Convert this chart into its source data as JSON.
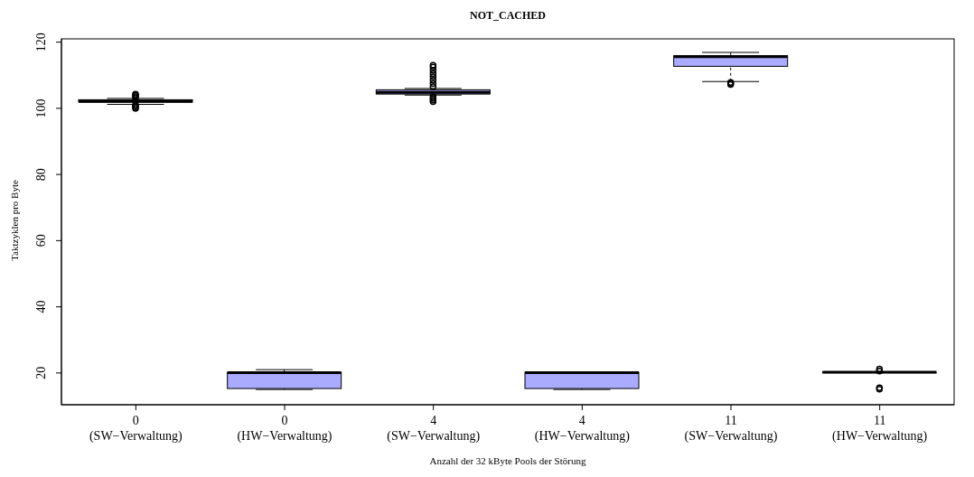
{
  "chart_data": {
    "type": "box",
    "title": "NOT_CACHED",
    "xlabel": "Anzahl der 32 kByte Pools der Störung",
    "ylabel": "Taktzyklen pro Byte",
    "categories": [
      "0\n(SW−Verwaltung)",
      "0\n(HW−Verwaltung)",
      "4\n(SW−Verwaltung)",
      "4\n(HW−Verwaltung)",
      "11\n(SW−Verwaltung)",
      "11\n(HW−Verwaltung)"
    ],
    "color": "#aaaaff",
    "boxes": [
      {
        "low": 101.2,
        "q1": 101.9,
        "median": 102.1,
        "q3": 102.6,
        "high": 103.0,
        "outliers": [
          100.0,
          100.4,
          100.8,
          101.0,
          103.2,
          103.6,
          104.0,
          104.3
        ]
      },
      {
        "low": 15.0,
        "q1": 15.3,
        "median": 20.1,
        "q3": 20.2,
        "high": 21.0
      },
      {
        "low": 104.0,
        "q1": 104.3,
        "median": 104.8,
        "q3": 105.6,
        "high": 106.0,
        "outliers": [
          102.0,
          102.5,
          103.0,
          103.5,
          106.5,
          107.5,
          108.5,
          109.5,
          110.5,
          111.5,
          112.5,
          113.0
        ]
      },
      {
        "low": 15.0,
        "q1": 15.3,
        "median": 20.1,
        "q3": 20.2,
        "high": 20.3
      },
      {
        "low": 108.1,
        "q1": 112.7,
        "median": 115.6,
        "q3": 115.9,
        "high": 116.9,
        "outliers": [
          107.2,
          107.5,
          107.8
        ]
      },
      {
        "low": 20.1,
        "q1": 20.1,
        "median": 20.2,
        "q3": 20.2,
        "high": 20.3,
        "outliers": [
          15.1,
          15.5,
          20.6,
          21.2
        ]
      }
    ],
    "ylim": [
      10.4,
      121
    ],
    "yticks": [
      20,
      40,
      60,
      80,
      100,
      120
    ]
  }
}
